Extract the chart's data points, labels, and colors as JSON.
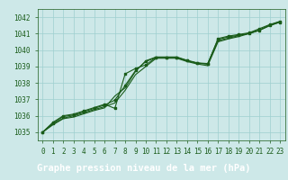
{
  "title": "Graphe pression niveau de la mer (hPa)",
  "bg_color": "#cde8e8",
  "plot_bg_color": "#cde8e8",
  "label_bg_color": "#2d6b2d",
  "grid_color": "#9ecfcf",
  "line_color": "#1a5c1a",
  "title_color": "#ffffff",
  "xlim": [
    -0.5,
    23.5
  ],
  "ylim": [
    1034.5,
    1042.5
  ],
  "xticks": [
    0,
    1,
    2,
    3,
    4,
    5,
    6,
    7,
    8,
    9,
    10,
    11,
    12,
    13,
    14,
    15,
    16,
    17,
    18,
    19,
    20,
    21,
    22,
    23
  ],
  "yticks": [
    1035,
    1036,
    1037,
    1038,
    1039,
    1040,
    1041,
    1042
  ],
  "series": [
    {
      "x": [
        0,
        1,
        2,
        3,
        4,
        5,
        6,
        7,
        8,
        9,
        10,
        11,
        12,
        13,
        14,
        15,
        16,
        17,
        18,
        19,
        20,
        21,
        22,
        23
      ],
      "y": [
        1035.0,
        1035.55,
        1035.95,
        1036.05,
        1036.25,
        1036.45,
        1036.65,
        1036.95,
        1037.85,
        1038.75,
        1039.3,
        1039.55,
        1039.55,
        1039.55,
        1039.35,
        1039.2,
        1039.15,
        1040.7,
        1040.85,
        1040.95,
        1041.05,
        1041.3,
        1041.55,
        1041.75
      ],
      "marker": true
    },
    {
      "x": [
        0,
        1,
        2,
        3,
        4,
        5,
        6,
        7,
        8,
        9,
        10,
        11,
        12,
        13,
        14,
        15,
        16,
        17,
        18,
        19,
        20,
        21,
        22,
        23
      ],
      "y": [
        1035.0,
        1035.5,
        1035.85,
        1036.0,
        1036.18,
        1036.38,
        1036.55,
        1036.78,
        1037.55,
        1038.5,
        1039.0,
        1039.5,
        1039.5,
        1039.5,
        1039.3,
        1039.15,
        1039.05,
        1040.5,
        1040.68,
        1040.82,
        1041.0,
        1041.2,
        1041.48,
        1041.7
      ],
      "marker": false
    },
    {
      "x": [
        0,
        1,
        2,
        3,
        4,
        5,
        6,
        7,
        8,
        9,
        10,
        11,
        12,
        13,
        14,
        15,
        16,
        17,
        18,
        19,
        20,
        21,
        22,
        23
      ],
      "y": [
        1035.0,
        1035.45,
        1035.82,
        1035.92,
        1036.12,
        1036.32,
        1036.48,
        1037.2,
        1037.7,
        1038.7,
        1039.35,
        1039.58,
        1039.58,
        1039.58,
        1039.38,
        1039.22,
        1039.18,
        1040.58,
        1040.72,
        1040.88,
        1041.03,
        1041.22,
        1041.52,
        1041.73
      ],
      "marker": false
    },
    {
      "x": [
        0,
        1,
        2,
        3,
        4,
        5,
        6,
        7,
        8,
        9,
        10,
        11,
        12,
        13,
        14,
        15,
        16,
        17,
        18,
        19,
        20,
        21,
        22,
        23
      ],
      "y": [
        1035.0,
        1035.6,
        1036.0,
        1036.1,
        1036.3,
        1036.5,
        1036.7,
        1036.45,
        1038.55,
        1038.88,
        1039.1,
        1039.55,
        1039.55,
        1039.55,
        1039.35,
        1039.2,
        1039.15,
        1040.65,
        1040.8,
        1040.9,
        1041.0,
        1041.2,
        1041.5,
        1041.7
      ],
      "marker": true
    }
  ],
  "title_fontsize": 7.5,
  "tick_fontsize": 5.5
}
